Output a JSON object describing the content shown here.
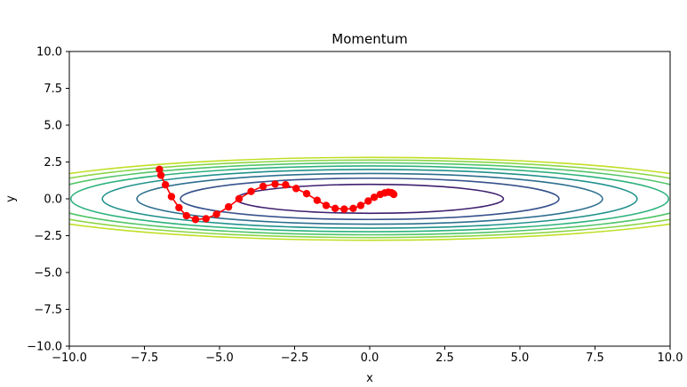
{
  "chart_data": {
    "type": "line",
    "title": "Momentum",
    "xlabel": "x",
    "ylabel": "y",
    "xlim": [
      -10,
      10
    ],
    "ylim": [
      -10,
      10
    ],
    "xticks": [
      -10,
      -7.5,
      -5,
      -2.5,
      0,
      2.5,
      5,
      7.5,
      10
    ],
    "xtick_labels": [
      "−10.0",
      "−7.5",
      "−5.0",
      "−2.5",
      "0.0",
      "2.5",
      "5.0",
      "7.5",
      "10.0"
    ],
    "yticks": [
      -10,
      -7.5,
      -5,
      -2.5,
      0,
      2.5,
      5,
      7.5,
      10
    ],
    "ytick_labels": [
      "−10.0",
      "−7.5",
      "−5.0",
      "−2.5",
      "0.0",
      "2.5",
      "5.0",
      "7.5",
      "10.0"
    ],
    "grid": false,
    "contours": {
      "function": "x^2/20 + y^2",
      "levels": [
        {
          "a": 4.45,
          "b": 0.98,
          "color": "#3e1f6e"
        },
        {
          "a": 6.3,
          "b": 1.4,
          "color": "#37528c"
        },
        {
          "a": 7.75,
          "b": 1.72,
          "color": "#2d6f8e"
        },
        {
          "a": 8.9,
          "b": 1.99,
          "color": "#20918c"
        },
        {
          "a": 9.95,
          "b": 2.23,
          "color": "#2db27d"
        },
        {
          "a": 10.9,
          "b": 2.44,
          "color": "#52c569"
        },
        {
          "a": 11.8,
          "b": 2.63,
          "color": "#8bd646"
        },
        {
          "a": 12.6,
          "b": 2.81,
          "color": "#c0df25"
        }
      ]
    },
    "series": [
      {
        "color": "#ff0000",
        "marker": "circle",
        "points": [
          [
            -7.0,
            2.0
          ],
          [
            -6.95,
            1.6
          ],
          [
            -6.8,
            0.95
          ],
          [
            -6.6,
            0.15
          ],
          [
            -6.35,
            -0.6
          ],
          [
            -6.1,
            -1.15
          ],
          [
            -5.8,
            -1.4
          ],
          [
            -5.45,
            -1.35
          ],
          [
            -5.1,
            -1.05
          ],
          [
            -4.7,
            -0.55
          ],
          [
            -4.35,
            0.0
          ],
          [
            -3.95,
            0.5
          ],
          [
            -3.55,
            0.85
          ],
          [
            -3.15,
            1.0
          ],
          [
            -2.8,
            0.95
          ],
          [
            -2.45,
            0.7
          ],
          [
            -2.1,
            0.35
          ],
          [
            -1.75,
            -0.1
          ],
          [
            -1.45,
            -0.45
          ],
          [
            -1.15,
            -0.65
          ],
          [
            -0.85,
            -0.7
          ],
          [
            -0.55,
            -0.65
          ],
          [
            -0.3,
            -0.45
          ],
          [
            -0.05,
            -0.15
          ],
          [
            0.15,
            0.1
          ],
          [
            0.35,
            0.3
          ],
          [
            0.5,
            0.4
          ],
          [
            0.62,
            0.45
          ],
          [
            0.72,
            0.42
          ],
          [
            0.78,
            0.35
          ],
          [
            0.8,
            0.3
          ]
        ]
      }
    ]
  }
}
